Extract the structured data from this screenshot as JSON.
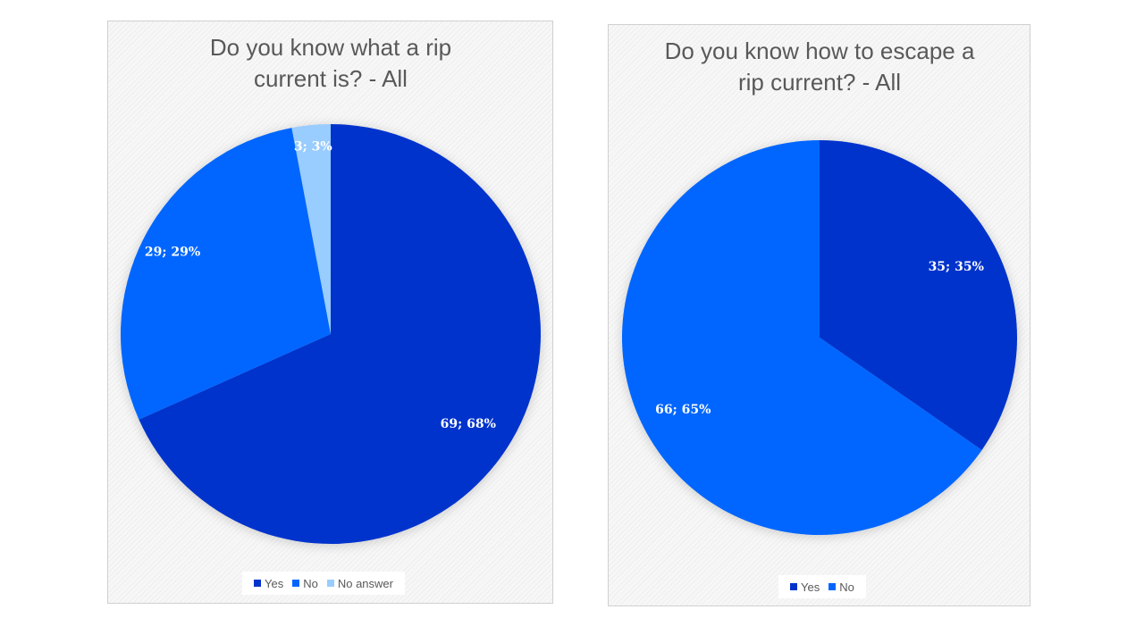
{
  "chart_data": [
    {
      "type": "pie",
      "title": "Do you know what a rip current is? - All",
      "categories": [
        "Yes",
        "No",
        "No answer"
      ],
      "values": [
        69,
        29,
        3
      ],
      "percents": [
        68,
        29,
        3
      ],
      "data_labels": [
        "69; 68%",
        "29; 29%",
        "3; 3%"
      ],
      "colors": [
        "#0033cc",
        "#0066ff",
        "#99ccff"
      ],
      "legend_position": "bottom"
    },
    {
      "type": "pie",
      "title": "Do you know how to escape a rip current? - All",
      "categories": [
        "Yes",
        "No"
      ],
      "values": [
        35,
        66
      ],
      "percents": [
        35,
        65
      ],
      "data_labels": [
        "35; 35%",
        "66; 65%"
      ],
      "colors": [
        "#0033cc",
        "#0066ff"
      ],
      "legend_position": "bottom"
    }
  ]
}
